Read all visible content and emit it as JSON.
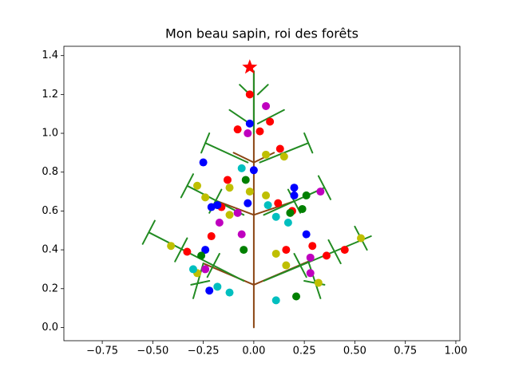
{
  "chart_data": {
    "type": "scatter",
    "title": "Mon beau sapin, roi des forêts",
    "xlim": [
      -0.94,
      1.02
    ],
    "ylim": [
      -0.068,
      1.448
    ],
    "xticks": [
      {
        "value": -0.75,
        "label": "−0.75"
      },
      {
        "value": -0.5,
        "label": "−0.50"
      },
      {
        "value": -0.25,
        "label": "−0.25"
      },
      {
        "value": 0,
        "label": "0.00"
      },
      {
        "value": 0.25,
        "label": "0.25"
      },
      {
        "value": 0.5,
        "label": "0.50"
      },
      {
        "value": 0.75,
        "label": "0.75"
      },
      {
        "value": 1,
        "label": "1.00"
      }
    ],
    "yticks": [
      {
        "value": 0,
        "label": "0.0"
      },
      0.2,
      0.4,
      0.6,
      0.8,
      {
        "value": 1,
        "label": "1.0"
      },
      1.2,
      1.4
    ],
    "grid": false,
    "series": [
      {
        "type": "line",
        "color": "#8b4513",
        "x": [
          0,
          0,
          null,
          0,
          -0.25,
          null,
          0,
          0.27,
          null,
          0,
          -0.18,
          null,
          0,
          0.2,
          null,
          0,
          -0.1,
          null,
          0,
          0.1
        ],
        "y": [
          0,
          1.32,
          null,
          0.22,
          0.33,
          null,
          0.22,
          0.34,
          null,
          0.58,
          0.65,
          null,
          0.58,
          0.65,
          null,
          0.85,
          0.9,
          null,
          0.85,
          0.9
        ]
      },
      {
        "type": "line",
        "color": "#228b22",
        "x": [
          -0.05,
          -0.52,
          null,
          0.05,
          0.58,
          null,
          -0.25,
          -0.3,
          null,
          0.27,
          0.33,
          null,
          -0.05,
          -0.33,
          null,
          0.05,
          0.35,
          null,
          -0.03,
          -0.24,
          null,
          0.03,
          0.27,
          null,
          -0.02,
          -0.12,
          null,
          0.02,
          0.15,
          null,
          -0.02,
          -0.07,
          null,
          0.02,
          0.07,
          null,
          0,
          0,
          null,
          -0.23,
          -0.17,
          null,
          -0.39,
          -0.33,
          null,
          -0.55,
          -0.49,
          null,
          0.26,
          0.2,
          null,
          0.43,
          0.37,
          null,
          0.56,
          0.5,
          null,
          -0.22,
          -0.16,
          null,
          -0.36,
          -0.3,
          null,
          0.23,
          0.17,
          null,
          0.38,
          0.32,
          null,
          -0.26,
          -0.22,
          null,
          0.29,
          0.25,
          null,
          -0.31,
          -0.22,
          null,
          0.25,
          0.35
        ],
        "y": [
          0.24,
          0.49,
          null,
          0.24,
          0.47,
          null,
          0.33,
          0.15,
          null,
          0.34,
          0.15,
          null,
          0.58,
          0.73,
          null,
          0.58,
          0.72,
          null,
          0.85,
          0.95,
          null,
          0.85,
          0.95,
          null,
          1.05,
          1.12,
          null,
          1.05,
          1.12,
          null,
          1.2,
          1.25,
          null,
          1.2,
          1.25,
          null,
          1.0,
          1.32,
          null,
          0.26,
          0.38,
          null,
          0.34,
          0.46,
          null,
          0.43,
          0.55,
          null,
          0.26,
          0.38,
          null,
          0.33,
          0.45,
          null,
          0.4,
          0.52,
          null,
          0.59,
          0.71,
          null,
          0.67,
          0.79,
          null,
          0.59,
          0.71,
          null,
          0.66,
          0.78,
          null,
          0.9,
          1.0,
          null,
          0.9,
          1.0,
          null,
          0.22,
          0.24,
          null,
          0.24,
          0.22
        ]
      },
      {
        "type": "scatter",
        "color": "#ff0000",
        "x": [
          -0.02,
          -0.08,
          0.08,
          0.03,
          0.13,
          -0.13,
          0.12,
          0.19,
          -0.16,
          -0.21,
          -0.33,
          0.16,
          0.29,
          0.36,
          0.45
        ],
        "y": [
          1.2,
          1.02,
          1.06,
          1.01,
          0.92,
          0.76,
          0.64,
          0.6,
          0.62,
          0.47,
          0.39,
          0.4,
          0.42,
          0.37,
          0.4
        ]
      },
      {
        "type": "scatter",
        "color": "#0000ff",
        "x": [
          -0.02,
          -0.25,
          0,
          0.2,
          0.2,
          -0.03,
          -0.21,
          -0.18,
          0.26,
          -0.24,
          -0.22
        ],
        "y": [
          1.05,
          0.85,
          0.81,
          0.72,
          0.68,
          0.64,
          0.62,
          0.63,
          0.48,
          0.4,
          0.19
        ]
      },
      {
        "type": "scatter",
        "color": "#bf00bf",
        "x": [
          0.06,
          -0.03,
          0.33,
          -0.08,
          -0.17,
          -0.06,
          0.28,
          -0.24,
          0.28
        ],
        "y": [
          1.14,
          1.0,
          0.7,
          0.59,
          0.54,
          0.48,
          0.36,
          0.3,
          0.28
        ]
      },
      {
        "type": "scatter",
        "color": "#bfbf00",
        "x": [
          0.06,
          0.15,
          -0.28,
          -0.24,
          -0.12,
          -0.02,
          0.06,
          -0.12,
          -0.41,
          0.11,
          0.16,
          0.53,
          -0.28,
          0.32
        ],
        "y": [
          0.89,
          0.88,
          0.73,
          0.67,
          0.72,
          0.7,
          0.68,
          0.58,
          0.42,
          0.38,
          0.32,
          0.46,
          0.28,
          0.23
        ]
      },
      {
        "type": "scatter",
        "color": "#008000",
        "x": [
          -0.04,
          0.26,
          0.24,
          0.18,
          -0.05,
          -0.26,
          0.21
        ],
        "y": [
          0.76,
          0.68,
          0.61,
          0.59,
          0.4,
          0.37,
          0.16
        ]
      },
      {
        "type": "scatter",
        "color": "#00bfbf",
        "x": [
          -0.06,
          0.07,
          0.11,
          0.17,
          -0.18,
          -0.12,
          0.11,
          -0.3
        ],
        "y": [
          0.82,
          0.63,
          0.57,
          0.54,
          0.21,
          0.18,
          0.14,
          0.3
        ]
      },
      {
        "type": "scatter",
        "color": "#ff0000",
        "marker": "star",
        "x": [
          -0.02
        ],
        "y": [
          1.34
        ]
      }
    ]
  }
}
